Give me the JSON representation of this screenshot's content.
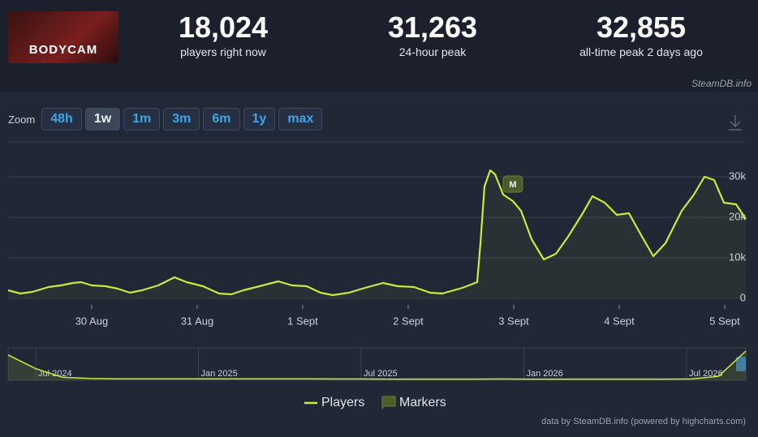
{
  "header": {
    "logo_text": "BODYCAM",
    "stats": [
      {
        "value": "18,024",
        "label": "players right now"
      },
      {
        "value": "31,263",
        "label": "24-hour peak"
      },
      {
        "value": "32,855",
        "label": "all-time peak 2 days ago"
      }
    ],
    "source": "SteamDB.info"
  },
  "zoom": {
    "label": "Zoom",
    "buttons": [
      "48h",
      "1w",
      "1m",
      "3m",
      "6m",
      "1y",
      "max"
    ],
    "active": 1
  },
  "chart_data": {
    "type": "line",
    "grid": true,
    "xlim": [
      -0.792,
      6.2
    ],
    "ylim": [
      0,
      38600
    ],
    "xticks": [
      {
        "value": 0,
        "label": "30 Aug"
      },
      {
        "value": 1,
        "label": "31 Aug"
      },
      {
        "value": 2,
        "label": "1 Sept"
      },
      {
        "value": 3,
        "label": "2 Sept"
      },
      {
        "value": 4,
        "label": "3 Sept"
      },
      {
        "value": 5,
        "label": "4 Sept"
      },
      {
        "value": 6,
        "label": "5 Sept"
      }
    ],
    "yticks": [
      0,
      {
        "value": 10000,
        "label": "10k"
      },
      {
        "value": 20000,
        "label": "20k"
      },
      {
        "value": 30000,
        "label": "30k"
      }
    ],
    "series": [
      {
        "name": "Players",
        "color": "#c8ec3b",
        "x": [
          -0.792,
          -0.677,
          -0.562,
          -0.408,
          -0.292,
          -0.177,
          -0.1,
          0,
          0.131,
          0.246,
          0.362,
          0.477,
          0.631,
          0.785,
          0.9,
          1.054,
          1.208,
          1.323,
          1.438,
          1.592,
          1.769,
          1.9,
          2.038,
          2.169,
          2.285,
          2.438,
          2.592,
          2.762,
          2.9,
          3.054,
          3.208,
          3.323,
          3.515,
          3.654,
          3.685,
          3.723,
          3.777,
          3.823,
          3.9,
          3.992,
          4.069,
          4.169,
          4.285,
          4.4,
          4.515,
          4.654,
          4.746,
          4.862,
          4.977,
          5.092,
          5.208,
          5.323,
          5.438,
          5.592,
          5.708,
          5.808,
          5.9,
          5.992,
          6.108,
          6.2
        ],
        "values": [
          2000,
          1200,
          1600,
          2800,
          3200,
          3800,
          4000,
          3200,
          3000,
          2400,
          1400,
          2000,
          3200,
          5200,
          4000,
          3000,
          1200,
          1000,
          2000,
          3000,
          4200,
          3200,
          3000,
          1400,
          800,
          1400,
          2600,
          3800,
          3000,
          2800,
          1400,
          1200,
          2600,
          4000,
          13600,
          27600,
          31600,
          30600,
          25600,
          24000,
          21600,
          14600,
          9600,
          11000,
          15200,
          21000,
          25200,
          23600,
          20600,
          21000,
          15600,
          10400,
          13600,
          21600,
          25600,
          30000,
          29200,
          23600,
          23200,
          19600
        ]
      },
      {
        "name": "Markers",
        "color": "#4b5e2a",
        "x": [
          3.992
        ],
        "labels": [
          "M"
        ]
      }
    ],
    "navigator": {
      "labels": [
        "Jul 2024",
        "Jan 2025",
        "Jul 2025",
        "Jan 2026",
        "Jul 2026"
      ],
      "values": [
        26000,
        12000,
        3000,
        1800,
        1500,
        1500,
        1500,
        1500,
        1500,
        1500,
        1400,
        1400,
        1300,
        1300,
        1200,
        1200,
        1200,
        1200,
        1300,
        1200,
        1200,
        1200,
        1200,
        1200,
        1200,
        1300,
        4000,
        30000
      ]
    },
    "credit": "data by SteamDB.info (powered by highcharts.com)"
  }
}
